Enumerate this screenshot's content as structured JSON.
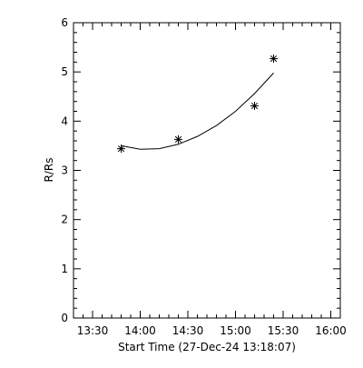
{
  "chart_data": {
    "type": "scatter",
    "xlabel": "Start Time (27-Dec-24 13:18:07)",
    "ylabel": "R/Rs",
    "xlim": [
      "13:18",
      "16:06"
    ],
    "ylim": [
      0,
      6
    ],
    "x_ticks": [
      "13:30",
      "14:00",
      "14:30",
      "15:00",
      "15:30",
      "16:00"
    ],
    "y_ticks": [
      "0",
      "1",
      "2",
      "3",
      "4",
      "5",
      "6"
    ],
    "grid": false,
    "series": [
      {
        "marker": "asterisk",
        "x": [
          "13:48",
          "14:24",
          "15:12",
          "15:24"
        ],
        "y": [
          3.44,
          3.63,
          4.31,
          5.27
        ]
      }
    ],
    "fit_curve": {
      "x": [
        "13:48",
        "14:00",
        "14:12",
        "14:24",
        "14:36",
        "14:48",
        "15:00",
        "15:12",
        "15:24"
      ],
      "y": [
        3.5,
        3.43,
        3.44,
        3.53,
        3.69,
        3.91,
        4.2,
        4.56,
        4.98
      ]
    }
  }
}
